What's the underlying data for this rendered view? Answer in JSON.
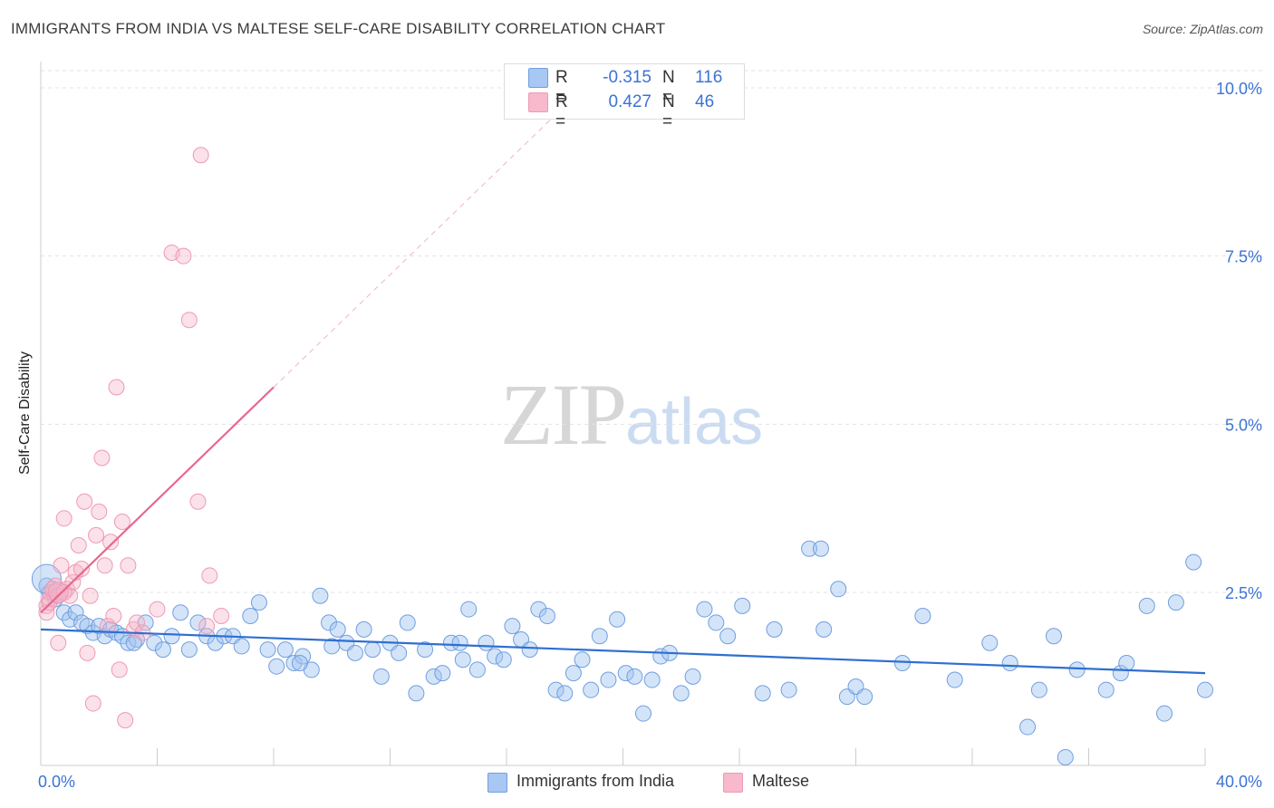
{
  "header": {
    "title": "IMMIGRANTS FROM INDIA VS MALTESE SELF-CARE DISABILITY CORRELATION CHART",
    "source": "Source: ZipAtlas.com"
  },
  "watermark": {
    "zip": "ZIP",
    "atlas": "atlas"
  },
  "stats": [
    {
      "swatch_color": "#a9c7f3",
      "r_label": "R =",
      "r_value": "-0.315",
      "n_label": "N =",
      "n_value": "116"
    },
    {
      "swatch_color": "#f7b9cb",
      "r_label": "R =",
      "r_value": "0.427",
      "n_label": "N =",
      "n_value": "46"
    }
  ],
  "legend": [
    {
      "label": "Immigrants from India",
      "color": "#a9c7f3"
    },
    {
      "label": "Maltese",
      "color": "#f7b9cb"
    }
  ],
  "colors": {
    "india_fill": "rgba(160,195,240,0.45)",
    "india_stroke": "#6f9fe0",
    "india_line": "#2f6fd1",
    "maltese_fill": "rgba(246,180,200,0.40)",
    "maltese_stroke": "#ee9ab4",
    "maltese_line": "#e8678f",
    "axis_text": "#3b73d6",
    "grid": "#e3e3e3"
  },
  "chart_data": {
    "type": "scatter",
    "title": "IMMIGRANTS FROM INDIA VS MALTESE SELF-CARE DISABILITY CORRELATION CHART",
    "xlabel": "",
    "ylabel": "Self-Care Disability",
    "xlim": [
      0,
      40
    ],
    "ylim": [
      0,
      10.5
    ],
    "x_tick_labels": [
      "0.0%",
      "40.0%"
    ],
    "y_ticks": [
      2.5,
      5.0,
      7.5,
      10.0
    ],
    "y_tick_labels": [
      "2.5%",
      "5.0%",
      "7.5%",
      "10.0%"
    ],
    "grid": "horizontal dashed",
    "legend_placement": "bottom",
    "series": [
      {
        "name": "Immigrants from India",
        "r": -0.315,
        "n": 116,
        "trend": {
          "x": [
            0,
            40
          ],
          "y": [
            1.95,
            1.3
          ]
        },
        "points": [
          [
            0.2,
            2.6
          ],
          [
            0.3,
            2.5
          ],
          [
            0.5,
            2.4
          ],
          [
            0.6,
            2.5
          ],
          [
            0.8,
            2.2
          ],
          [
            1.0,
            2.1
          ],
          [
            1.2,
            2.2
          ],
          [
            1.4,
            2.05
          ],
          [
            1.6,
            2.0
          ],
          [
            1.8,
            1.9
          ],
          [
            2.0,
            2.0
          ],
          [
            2.2,
            1.85
          ],
          [
            2.4,
            1.95
          ],
          [
            2.6,
            1.9
          ],
          [
            2.8,
            1.85
          ],
          [
            3.0,
            1.75
          ],
          [
            3.3,
            1.8
          ],
          [
            3.6,
            2.05
          ],
          [
            3.9,
            1.75
          ],
          [
            4.2,
            1.65
          ],
          [
            4.5,
            1.85
          ],
          [
            4.8,
            2.2
          ],
          [
            5.1,
            1.65
          ],
          [
            5.4,
            2.05
          ],
          [
            5.7,
            1.85
          ],
          [
            6.0,
            1.75
          ],
          [
            6.3,
            1.85
          ],
          [
            6.6,
            1.85
          ],
          [
            6.9,
            1.7
          ],
          [
            7.2,
            2.15
          ],
          [
            7.5,
            2.35
          ],
          [
            7.8,
            1.65
          ],
          [
            8.1,
            1.4
          ],
          [
            8.4,
            1.65
          ],
          [
            8.7,
            1.45
          ],
          [
            9.0,
            1.55
          ],
          [
            9.3,
            1.35
          ],
          [
            9.6,
            2.45
          ],
          [
            9.9,
            2.05
          ],
          [
            10.2,
            1.95
          ],
          [
            10.5,
            1.75
          ],
          [
            10.8,
            1.6
          ],
          [
            11.1,
            1.95
          ],
          [
            11.4,
            1.65
          ],
          [
            11.7,
            1.25
          ],
          [
            12.0,
            1.75
          ],
          [
            12.3,
            1.6
          ],
          [
            12.6,
            2.05
          ],
          [
            12.9,
            1.0
          ],
          [
            13.2,
            1.65
          ],
          [
            13.5,
            1.25
          ],
          [
            13.8,
            1.3
          ],
          [
            14.1,
            1.75
          ],
          [
            14.4,
            1.75
          ],
          [
            14.7,
            2.25
          ],
          [
            15.0,
            1.35
          ],
          [
            15.3,
            1.75
          ],
          [
            15.6,
            1.55
          ],
          [
            15.9,
            1.5
          ],
          [
            16.2,
            2.0
          ],
          [
            16.5,
            1.8
          ],
          [
            16.8,
            1.65
          ],
          [
            17.1,
            2.25
          ],
          [
            17.4,
            2.15
          ],
          [
            17.7,
            1.05
          ],
          [
            18.0,
            1.0
          ],
          [
            18.3,
            1.3
          ],
          [
            18.6,
            1.5
          ],
          [
            18.9,
            1.05
          ],
          [
            19.2,
            1.85
          ],
          [
            19.5,
            1.2
          ],
          [
            19.8,
            2.1
          ],
          [
            20.1,
            1.3
          ],
          [
            20.4,
            1.25
          ],
          [
            20.7,
            0.7
          ],
          [
            21.0,
            1.2
          ],
          [
            21.3,
            1.55
          ],
          [
            21.6,
            1.6
          ],
          [
            22.0,
            1.0
          ],
          [
            22.4,
            1.25
          ],
          [
            22.8,
            2.25
          ],
          [
            23.2,
            2.05
          ],
          [
            23.6,
            1.85
          ],
          [
            24.1,
            2.3
          ],
          [
            24.8,
            1.0
          ],
          [
            25.2,
            1.95
          ],
          [
            25.7,
            1.05
          ],
          [
            26.4,
            3.15
          ],
          [
            26.9,
            1.95
          ],
          [
            27.4,
            2.55
          ],
          [
            27.7,
            0.95
          ],
          [
            28.0,
            1.1
          ],
          [
            28.3,
            0.95
          ],
          [
            29.6,
            1.45
          ],
          [
            30.3,
            2.15
          ],
          [
            31.4,
            1.2
          ],
          [
            32.6,
            1.75
          ],
          [
            33.3,
            1.45
          ],
          [
            33.9,
            0.5
          ],
          [
            34.3,
            1.05
          ],
          [
            34.8,
            1.85
          ],
          [
            35.2,
            0.05
          ],
          [
            35.6,
            1.35
          ],
          [
            36.6,
            1.05
          ],
          [
            37.1,
            1.3
          ],
          [
            37.3,
            1.45
          ],
          [
            38.0,
            2.3
          ],
          [
            38.6,
            0.7
          ],
          [
            39.0,
            2.35
          ],
          [
            39.6,
            2.95
          ],
          [
            40.0,
            1.05
          ],
          [
            26.8,
            3.15
          ],
          [
            8.9,
            1.45
          ],
          [
            10.0,
            1.7
          ],
          [
            3.2,
            1.75
          ],
          [
            14.5,
            1.5
          ]
        ]
      },
      {
        "name": "Maltese",
        "r": 0.427,
        "n": 46,
        "trend": {
          "x": [
            0,
            8
          ],
          "y": [
            2.2,
            5.55
          ]
        },
        "trend_extension": {
          "x": [
            8,
            19
          ],
          "y": [
            5.55,
            10.15
          ]
        },
        "points": [
          [
            0.2,
            2.3
          ],
          [
            0.3,
            2.4
          ],
          [
            0.4,
            2.5
          ],
          [
            0.5,
            2.6
          ],
          [
            0.6,
            1.75
          ],
          [
            0.7,
            2.9
          ],
          [
            0.8,
            3.6
          ],
          [
            0.9,
            2.55
          ],
          [
            1.0,
            2.45
          ],
          [
            1.1,
            2.65
          ],
          [
            1.2,
            2.8
          ],
          [
            1.3,
            3.2
          ],
          [
            1.5,
            3.85
          ],
          [
            1.6,
            1.6
          ],
          [
            1.7,
            2.45
          ],
          [
            1.8,
            0.85
          ],
          [
            1.9,
            3.35
          ],
          [
            2.0,
            3.7
          ],
          [
            2.1,
            4.5
          ],
          [
            2.2,
            2.9
          ],
          [
            2.3,
            2.0
          ],
          [
            2.4,
            3.25
          ],
          [
            2.5,
            2.15
          ],
          [
            2.6,
            5.55
          ],
          [
            2.7,
            1.35
          ],
          [
            2.8,
            3.55
          ],
          [
            2.9,
            0.6
          ],
          [
            3.0,
            2.9
          ],
          [
            3.2,
            1.95
          ],
          [
            3.3,
            2.05
          ],
          [
            3.5,
            1.9
          ],
          [
            4.0,
            2.25
          ],
          [
            4.5,
            7.55
          ],
          [
            4.9,
            7.5
          ],
          [
            5.1,
            6.55
          ],
          [
            5.4,
            3.85
          ],
          [
            5.5,
            9.0
          ],
          [
            5.7,
            2.0
          ],
          [
            5.8,
            2.75
          ],
          [
            6.2,
            2.15
          ],
          [
            0.2,
            2.2
          ],
          [
            0.3,
            2.35
          ],
          [
            0.4,
            2.55
          ],
          [
            0.6,
            2.45
          ],
          [
            0.8,
            2.5
          ],
          [
            1.4,
            2.85
          ]
        ]
      }
    ]
  }
}
